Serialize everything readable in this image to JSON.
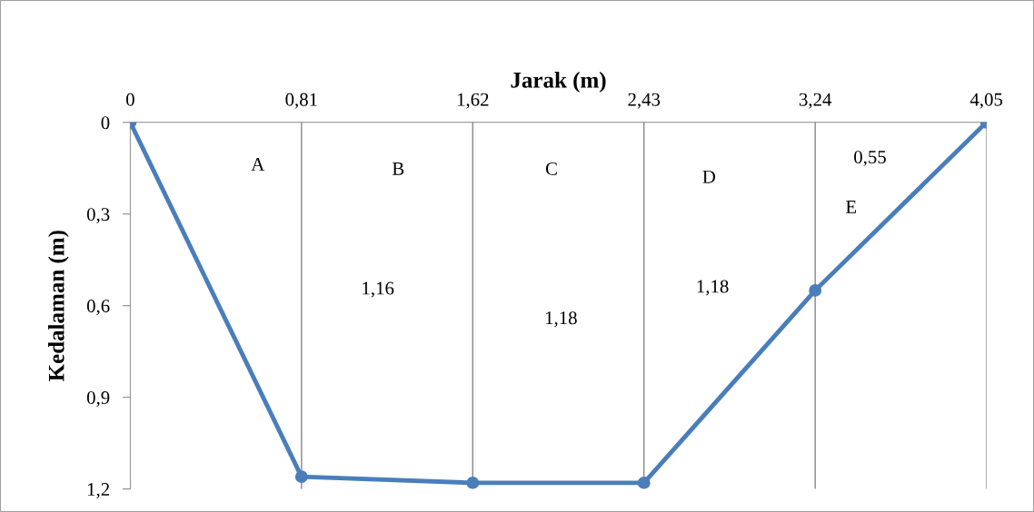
{
  "chart_data": {
    "type": "line",
    "xlabel": "Jarak (m)",
    "ylabel": "Kedalaman (m)",
    "x": [
      0,
      0.81,
      1.62,
      2.43,
      3.24,
      4.05
    ],
    "series": [
      {
        "color": "#4a7ebb",
        "values": [
          0,
          1.16,
          1.18,
          1.18,
          0.55,
          0
        ]
      }
    ],
    "xlim": [
      0,
      4.05
    ],
    "xticks": [
      0,
      {
        "value": 0.81,
        "label": "0,81"
      },
      {
        "value": 1.62,
        "label": "1,62"
      },
      {
        "value": 2.43,
        "label": "2,43"
      },
      {
        "value": 3.24,
        "label": "3,24"
      },
      {
        "value": 4.05,
        "label": "4,05"
      }
    ],
    "ylim": [
      1.2,
      0
    ],
    "yticks": [
      0,
      {
        "value": 0.3,
        "label": "0,3"
      },
      {
        "value": 0.6,
        "label": "0,6"
      },
      {
        "value": 0.9,
        "label": "0,9"
      },
      {
        "value": 1.2,
        "label": "1,2"
      }
    ],
    "grid": "x",
    "marker": "circle",
    "line_style": "solid",
    "annotations": [
      "A",
      "B",
      "C",
      "D",
      "0,55",
      "E",
      "1,16",
      "1,18",
      "1,18"
    ]
  }
}
